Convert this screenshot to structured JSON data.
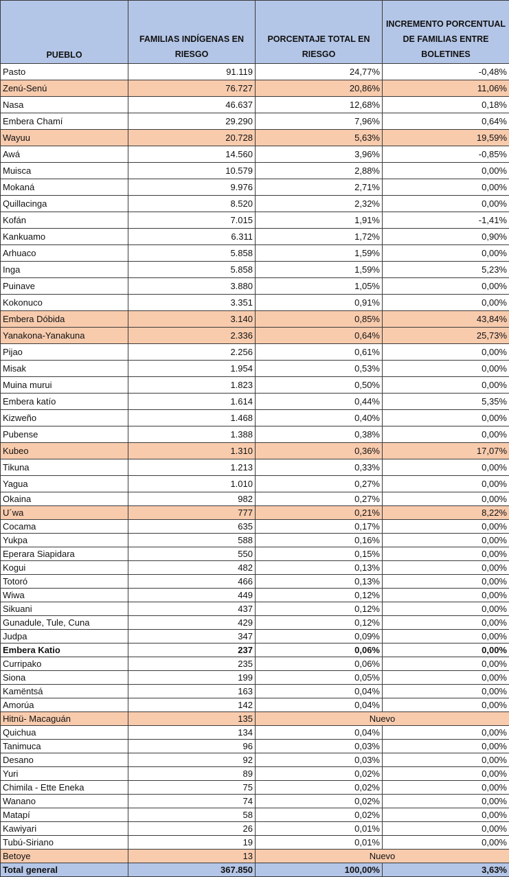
{
  "headers": {
    "pueblo": "PUEBLO",
    "familias": "FAMILIAS INDÍGENAS EN RIESGO",
    "porcentaje": "PORCENTAJE TOTAL EN RIESGO",
    "incremento": "INCREMENTO PORCENTUAL DE FAMILIAS ENTRE BOLETINES"
  },
  "colors": {
    "header_bg": "#b4c6e7",
    "highlight_bg": "#f8cbad"
  },
  "rows": [
    {
      "pueblo": "Pasto",
      "familias": "91.119",
      "porcentaje": "24,77%",
      "incremento": "-0,48%",
      "highlight": false
    },
    {
      "pueblo": "Zenú-Senú",
      "familias": "76.727",
      "porcentaje": "20,86%",
      "incremento": "11,06%",
      "highlight": true
    },
    {
      "pueblo": "Nasa",
      "familias": "46.637",
      "porcentaje": "12,68%",
      "incremento": "0,18%",
      "highlight": false
    },
    {
      "pueblo": "Embera Chamí",
      "familias": "29.290",
      "porcentaje": "7,96%",
      "incremento": "0,64%",
      "highlight": false
    },
    {
      "pueblo": "Wayuu",
      "familias": "20.728",
      "porcentaje": "5,63%",
      "incremento": "19,59%",
      "highlight": true
    },
    {
      "pueblo": "Awá",
      "familias": "14.560",
      "porcentaje": "3,96%",
      "incremento": "-0,85%",
      "highlight": false
    },
    {
      "pueblo": "Muisca",
      "familias": "10.579",
      "porcentaje": "2,88%",
      "incremento": "0,00%",
      "highlight": false
    },
    {
      "pueblo": "Mokaná",
      "familias": "9.976",
      "porcentaje": "2,71%",
      "incremento": "0,00%",
      "highlight": false
    },
    {
      "pueblo": "Quillacinga",
      "familias": "8.520",
      "porcentaje": "2,32%",
      "incremento": "0,00%",
      "highlight": false
    },
    {
      "pueblo": "Kofán",
      "familias": "7.015",
      "porcentaje": "1,91%",
      "incremento": "-1,41%",
      "highlight": false
    },
    {
      "pueblo": "Kankuamo",
      "familias": "6.311",
      "porcentaje": "1,72%",
      "incremento": "0,90%",
      "highlight": false
    },
    {
      "pueblo": "Arhuaco",
      "familias": "5.858",
      "porcentaje": "1,59%",
      "incremento": "0,00%",
      "highlight": false
    },
    {
      "pueblo": "Inga",
      "familias": "5.858",
      "porcentaje": "1,59%",
      "incremento": "5,23%",
      "highlight": false
    },
    {
      "pueblo": "Puinave",
      "familias": "3.880",
      "porcentaje": "1,05%",
      "incremento": "0,00%",
      "highlight": false
    },
    {
      "pueblo": "Kokonuco",
      "familias": "3.351",
      "porcentaje": "0,91%",
      "incremento": "0,00%",
      "highlight": false
    },
    {
      "pueblo": "Embera Dóbida",
      "familias": "3.140",
      "porcentaje": "0,85%",
      "incremento": "43,84%",
      "highlight": true
    },
    {
      "pueblo": "Yanakona-Yanakuna",
      "familias": "2.336",
      "porcentaje": "0,64%",
      "incremento": "25,73%",
      "highlight": true
    },
    {
      "pueblo": "Pijao",
      "familias": "2.256",
      "porcentaje": "0,61%",
      "incremento": "0,00%",
      "highlight": false
    },
    {
      "pueblo": "Misak",
      "familias": "1.954",
      "porcentaje": "0,53%",
      "incremento": "0,00%",
      "highlight": false
    },
    {
      "pueblo": "Muina murui",
      "familias": "1.823",
      "porcentaje": "0,50%",
      "incremento": "0,00%",
      "highlight": false
    },
    {
      "pueblo": "Embera katío",
      "familias": "1.614",
      "porcentaje": "0,44%",
      "incremento": "5,35%",
      "highlight": false
    },
    {
      "pueblo": "Kizweño",
      "familias": "1.468",
      "porcentaje": "0,40%",
      "incremento": "0,00%",
      "highlight": false
    },
    {
      "pueblo": "Pubense",
      "familias": "1.388",
      "porcentaje": "0,38%",
      "incremento": "0,00%",
      "highlight": false
    },
    {
      "pueblo": "Kubeo",
      "familias": "1.310",
      "porcentaje": "0,36%",
      "incremento": "17,07%",
      "highlight": true
    },
    {
      "pueblo": "Tikuna",
      "familias": "1.213",
      "porcentaje": "0,33%",
      "incremento": "0,00%",
      "highlight": false
    },
    {
      "pueblo": "Yagua",
      "familias": "1.010",
      "porcentaje": "0,27%",
      "incremento": "0,00%",
      "highlight": false
    },
    {
      "pueblo": "Okaina",
      "familias": "982",
      "porcentaje": "0,27%",
      "incremento": "0,00%",
      "highlight": false,
      "short": true
    },
    {
      "pueblo": "U´wa",
      "familias": "777",
      "porcentaje": "0,21%",
      "incremento": "8,22%",
      "highlight": true,
      "short": true
    },
    {
      "pueblo": "Cocama",
      "familias": "635",
      "porcentaje": "0,17%",
      "incremento": "0,00%",
      "highlight": false,
      "short": true
    },
    {
      "pueblo": "Yukpa",
      "familias": "588",
      "porcentaje": "0,16%",
      "incremento": "0,00%",
      "highlight": false,
      "short": true
    },
    {
      "pueblo": "Eperara Siapidara",
      "familias": "550",
      "porcentaje": "0,15%",
      "incremento": "0,00%",
      "highlight": false,
      "short": true
    },
    {
      "pueblo": "Kogui",
      "familias": "482",
      "porcentaje": "0,13%",
      "incremento": "0,00%",
      "highlight": false,
      "short": true
    },
    {
      "pueblo": "Totoró",
      "familias": "466",
      "porcentaje": "0,13%",
      "incremento": "0,00%",
      "highlight": false,
      "short": true
    },
    {
      "pueblo": "Wiwa",
      "familias": "449",
      "porcentaje": "0,12%",
      "incremento": "0,00%",
      "highlight": false,
      "short": true
    },
    {
      "pueblo": "Sikuani",
      "familias": "437",
      "porcentaje": "0,12%",
      "incremento": "0,00%",
      "highlight": false,
      "short": true
    },
    {
      "pueblo": "Gunadule, Tule, Cuna",
      "familias": "429",
      "porcentaje": "0,12%",
      "incremento": "0,00%",
      "highlight": false,
      "short": true
    },
    {
      "pueblo": "Judpa",
      "familias": "347",
      "porcentaje": "0,09%",
      "incremento": "0,00%",
      "highlight": false,
      "short": true
    },
    {
      "pueblo": "Embera Katio",
      "familias": "237",
      "porcentaje": "0,06%",
      "incremento": "0,00%",
      "highlight": false,
      "short": true,
      "bold": true
    },
    {
      "pueblo": "Curripako",
      "familias": "235",
      "porcentaje": "0,06%",
      "incremento": "0,00%",
      "highlight": false,
      "short": true
    },
    {
      "pueblo": "Siona",
      "familias": "199",
      "porcentaje": "0,05%",
      "incremento": "0,00%",
      "highlight": false,
      "short": true
    },
    {
      "pueblo": "Kamëntsá",
      "familias": "163",
      "porcentaje": "0,04%",
      "incremento": "0,00%",
      "highlight": false,
      "short": true
    },
    {
      "pueblo": "Amorúa",
      "familias": "142",
      "porcentaje": "0,04%",
      "incremento": "0,00%",
      "highlight": false,
      "short": true
    },
    {
      "pueblo": "Hitnü- Macaguán",
      "familias": "135",
      "nuevo": "Nuevo",
      "highlight": true,
      "short": true
    },
    {
      "pueblo": "Quichua",
      "familias": "134",
      "porcentaje": "0,04%",
      "incremento": "0,00%",
      "highlight": false,
      "short": true
    },
    {
      "pueblo": "Tanimuca",
      "familias": "96",
      "porcentaje": "0,03%",
      "incremento": "0,00%",
      "highlight": false,
      "short": true
    },
    {
      "pueblo": "Desano",
      "familias": "92",
      "porcentaje": "0,03%",
      "incremento": "0,00%",
      "highlight": false,
      "short": true
    },
    {
      "pueblo": "Yuri",
      "familias": "89",
      "porcentaje": "0,02%",
      "incremento": "0,00%",
      "highlight": false,
      "short": true
    },
    {
      "pueblo": "Chimila - Ette Eneka",
      "familias": "75",
      "porcentaje": "0,02%",
      "incremento": "0,00%",
      "highlight": false,
      "short": true
    },
    {
      "pueblo": "Wanano",
      "familias": "74",
      "porcentaje": "0,02%",
      "incremento": "0,00%",
      "highlight": false,
      "short": true
    },
    {
      "pueblo": "Matapí",
      "familias": "58",
      "porcentaje": "0,02%",
      "incremento": "0,00%",
      "highlight": false,
      "short": true
    },
    {
      "pueblo": "Kawiyari",
      "familias": "26",
      "porcentaje": "0,01%",
      "incremento": "0,00%",
      "highlight": false,
      "short": true
    },
    {
      "pueblo": "Tubú-Siriano",
      "familias": "19",
      "porcentaje": "0,01%",
      "incremento": "0,00%",
      "highlight": false,
      "short": true
    },
    {
      "pueblo": "Betoye",
      "familias": "13",
      "nuevo": "Nuevo",
      "highlight": true,
      "short": true
    }
  ],
  "total": {
    "label": "Total general",
    "familias": "367.850",
    "porcentaje": "100,00%",
    "incremento": "3,63%"
  }
}
